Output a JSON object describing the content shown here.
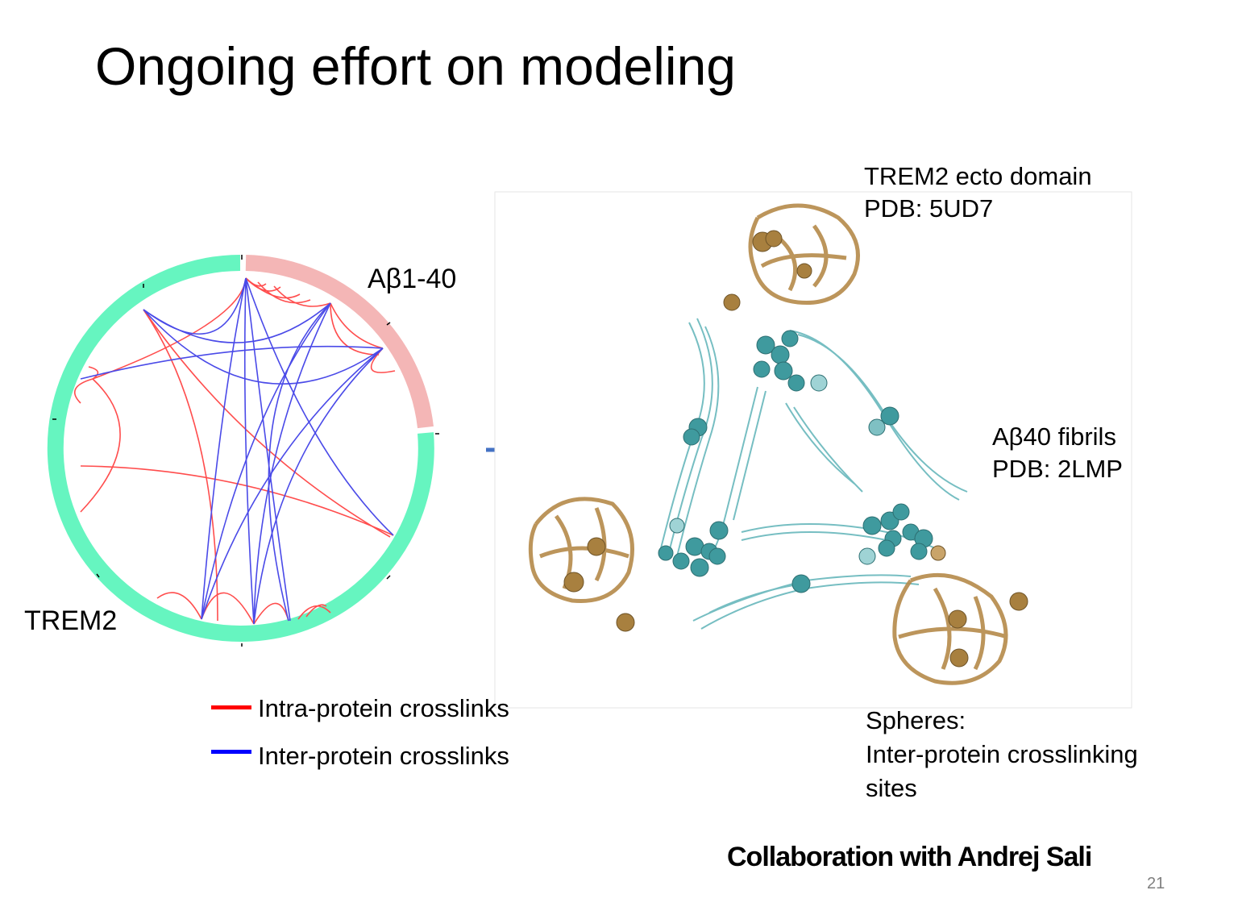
{
  "slide": {
    "title": "Ongoing effort on modeling",
    "page_number": "21",
    "collaboration": "Collaboration with Andrej Sali"
  },
  "circos": {
    "label_abeta": "Aβ1-40",
    "label_trem2": "TREM2",
    "colors": {
      "trem2": "#66f5c0",
      "abeta": "#f4b6b6",
      "intra": "#ff4d4d",
      "inter": "#4a4ae8"
    }
  },
  "legend": {
    "items": [
      {
        "label": "Intra-protein crosslinks",
        "color": "#ff0000"
      },
      {
        "label": "Inter-protein crosslinks",
        "color": "#0000ff"
      }
    ]
  },
  "structure": {
    "trem2_label_line1": "TREM2 ecto domain",
    "trem2_label_line2": "PDB: 5UD7",
    "fibril_label_line1": "Aβ40 fibrils",
    "fibril_label_line2": "PDB: 2LMP",
    "spheres_line1": "Spheres:",
    "spheres_line2": "Inter-protein crosslinking",
    "spheres_line3": "sites",
    "colors": {
      "trem2": "#b58a4a",
      "fibril": "#3f9a9e"
    }
  }
}
